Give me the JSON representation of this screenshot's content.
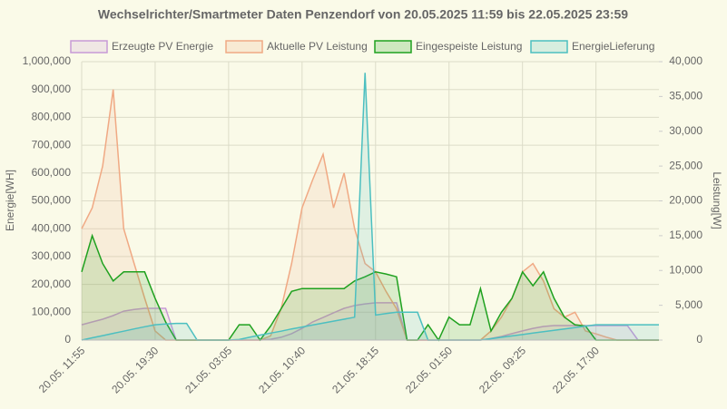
{
  "chart_data": {
    "type": "line",
    "title": "Wechselrichter/Smartmeter Daten Penzendorf von 20.05.2025 11:59 bis 22.05.2025 23:59",
    "y_label": "Energie[WH]",
    "y2_label": "Leistung[W]",
    "categories": [
      "20.05. 11:55",
      null,
      null,
      null,
      null,
      null,
      null,
      "20.05. 19:30",
      null,
      null,
      null,
      null,
      null,
      null,
      "21.05. 03:05",
      null,
      null,
      null,
      null,
      null,
      null,
      "21.05. 10:40",
      null,
      null,
      null,
      null,
      null,
      null,
      "21.05. 18:15",
      null,
      null,
      null,
      null,
      null,
      null,
      "22.05. 01:50",
      null,
      null,
      null,
      null,
      null,
      null,
      "22.05. 09:25",
      null,
      null,
      null,
      null,
      null,
      null,
      "22.05. 17:00",
      null,
      null,
      null,
      null,
      null,
      null
    ],
    "ylim": [
      0,
      1000000
    ],
    "yticks": [
      0,
      {
        "value": 100000,
        "label": "100,000"
      },
      {
        "value": 200000,
        "label": "200,000"
      },
      {
        "value": 300000,
        "label": "300,000"
      },
      {
        "value": 400000,
        "label": "400,000"
      },
      {
        "value": 500000,
        "label": "500,000"
      },
      {
        "value": 600000,
        "label": "600,000"
      },
      {
        "value": 700000,
        "label": "700,000"
      },
      {
        "value": 800000,
        "label": "800,000"
      },
      {
        "value": 900000,
        "label": "900,000"
      },
      {
        "value": 1000000,
        "label": "1,000,000"
      }
    ],
    "y2lim": [
      0,
      40000
    ],
    "y2ticks": [
      0,
      {
        "value": 5000,
        "label": "5,000"
      },
      {
        "value": 10000,
        "label": "10,000"
      },
      {
        "value": 15000,
        "label": "15,000"
      },
      {
        "value": 20000,
        "label": "20,000"
      },
      {
        "value": 25000,
        "label": "25,000"
      },
      {
        "value": 30000,
        "label": "30,000"
      },
      {
        "value": 35000,
        "label": "35,000"
      },
      {
        "value": 40000,
        "label": "40,000"
      }
    ],
    "grid": true,
    "series": [
      {
        "name": "Erzeugte PV Energie",
        "color": "#c79ad6",
        "axis": "y",
        "values": [
          55000,
          65000,
          75000,
          88000,
          104000,
          110000,
          114000,
          114000,
          114000,
          0,
          0,
          0,
          0,
          0,
          0,
          0,
          0,
          0,
          3000,
          10000,
          23000,
          42000,
          65000,
          81000,
          98000,
          114000,
          124000,
          130000,
          134000,
          134000,
          134000,
          0,
          0,
          0,
          0,
          0,
          0,
          0,
          0,
          6000,
          13000,
          23000,
          33000,
          42000,
          49000,
          52000,
          52000,
          52000,
          52000,
          52000,
          52000,
          52000,
          52000,
          0,
          0,
          0
        ]
      },
      {
        "name": "Aktuelle PV Leistung",
        "color": "#f0a984",
        "axis": "y2",
        "values": [
          16000,
          19000,
          25000,
          36000,
          16000,
          11000,
          6000,
          1300,
          0,
          0,
          0,
          0,
          0,
          0,
          0,
          0,
          0,
          0,
          600,
          4500,
          11000,
          19000,
          23000,
          26700,
          19000,
          24000,
          16000,
          11000,
          9800,
          7000,
          4500,
          0,
          0,
          0,
          0,
          0,
          0,
          0,
          0,
          1300,
          3300,
          6000,
          9800,
          11000,
          8500,
          4500,
          3300,
          4000,
          1300,
          900,
          400,
          0,
          0,
          0,
          0,
          0
        ]
      },
      {
        "name": "Eingespeiste Leistung",
        "color": "#1fa11f",
        "axis": "y2",
        "values": [
          9800,
          15000,
          11000,
          8500,
          9800,
          9800,
          9800,
          6000,
          2600,
          0,
          0,
          0,
          0,
          0,
          0,
          2200,
          2200,
          0,
          2000,
          4500,
          7000,
          7400,
          7400,
          7400,
          7400,
          7400,
          8500,
          9100,
          9800,
          9500,
          9100,
          0,
          0,
          2200,
          0,
          3300,
          2200,
          2200,
          7400,
          1300,
          4000,
          6000,
          9800,
          7800,
          9800,
          6000,
          3300,
          2200,
          2000,
          0,
          0,
          0,
          0,
          0,
          0,
          0
        ]
      },
      {
        "name": "EnergieLieferung",
        "color": "#4cbfc0",
        "axis": "y",
        "values": [
          0,
          8000,
          16000,
          24000,
          32000,
          40000,
          48000,
          55000,
          58000,
          60000,
          60000,
          0,
          0,
          0,
          0,
          2000,
          10000,
          18000,
          25000,
          32000,
          40000,
          47000,
          54000,
          61000,
          68000,
          75000,
          82000,
          960000,
          90000,
          95000,
          100000,
          100000,
          100000,
          0,
          0,
          0,
          0,
          0,
          0,
          5000,
          10000,
          15000,
          20000,
          25000,
          30000,
          35000,
          40000,
          45000,
          50000,
          55000,
          55000,
          55000,
          55000,
          55000,
          55000,
          55000
        ]
      }
    ]
  }
}
